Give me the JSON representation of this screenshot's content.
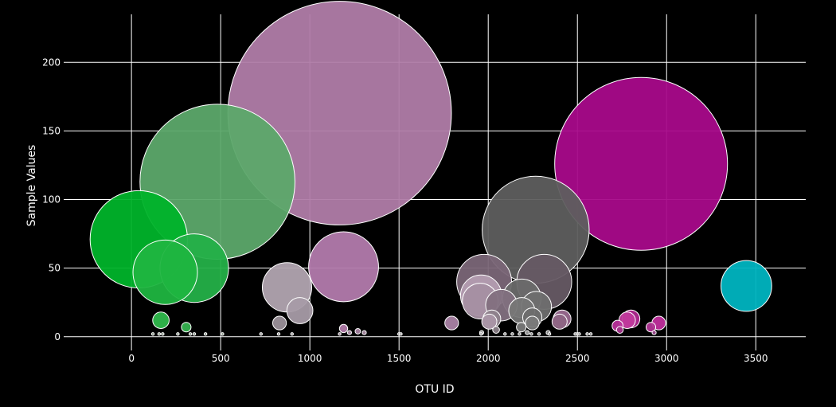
{
  "chart_data": {
    "type": "scatter",
    "style": "bubble",
    "title": "",
    "xlabel": "OTU ID",
    "ylabel": "Sample Values",
    "xlim": [
      -380,
      3780
    ],
    "ylim": [
      -10,
      235
    ],
    "xticks": [
      0,
      500,
      1000,
      1500,
      2000,
      2500,
      3000,
      3500
    ],
    "yticks": [
      0,
      50,
      100,
      150,
      200
    ],
    "grid": true,
    "legend": "none",
    "background": "#000000",
    "size_scale": "diameter proportional to sample value",
    "points": [
      {
        "x": 41,
        "y": 71,
        "color": "#00b32a"
      },
      {
        "x": 189,
        "y": 47,
        "color": "#1fb540"
      },
      {
        "x": 352,
        "y": 50,
        "color": "#24b048"
      },
      {
        "x": 482,
        "y": 113,
        "color": "#5ca86a"
      },
      {
        "x": 165,
        "y": 12,
        "color": "#2fb84c"
      },
      {
        "x": 307,
        "y": 7,
        "color": "#35b14f"
      },
      {
        "x": 1167,
        "y": 163,
        "color": "#b07ca8"
      },
      {
        "x": 1189,
        "y": 51,
        "color": "#b27aac"
      },
      {
        "x": 872,
        "y": 36,
        "color": "#b1a4b0"
      },
      {
        "x": 944,
        "y": 19,
        "color": "#a79ba6"
      },
      {
        "x": 830,
        "y": 10,
        "color": "#9a9099"
      },
      {
        "x": 1189,
        "y": 6,
        "color": "#b07aa8"
      },
      {
        "x": 1269,
        "y": 4,
        "color": "#a884a2"
      },
      {
        "x": 1795,
        "y": 10,
        "color": "#a982a4"
      },
      {
        "x": 1977,
        "y": 40,
        "color": "#7a6677"
      },
      {
        "x": 1960,
        "y": 30,
        "color": "#b39cb0"
      },
      {
        "x": 1955,
        "y": 26,
        "color": "#a58fa2"
      },
      {
        "x": 2074,
        "y": 23,
        "color": "#82707f"
      },
      {
        "x": 2020,
        "y": 13,
        "color": "#8f838d"
      },
      {
        "x": 2006,
        "y": 11,
        "color": "#aa96a6"
      },
      {
        "x": 2044,
        "y": 5,
        "color": "#8a7f88"
      },
      {
        "x": 2266,
        "y": 78,
        "color": "#5e5e5e"
      },
      {
        "x": 2314,
        "y": 40,
        "color": "#665a64"
      },
      {
        "x": 2188,
        "y": 28,
        "color": "#6a6a6a"
      },
      {
        "x": 2188,
        "y": 19,
        "color": "#767676"
      },
      {
        "x": 2270,
        "y": 22,
        "color": "#6e6e6e"
      },
      {
        "x": 2247,
        "y": 14,
        "color": "#6d6d6d"
      },
      {
        "x": 2247,
        "y": 10,
        "color": "#7a7a7a"
      },
      {
        "x": 2185,
        "y": 7,
        "color": "#7a7a7a"
      },
      {
        "x": 2414,
        "y": 13,
        "color": "#9a6a90"
      },
      {
        "x": 2400,
        "y": 11,
        "color": "#8e6584"
      },
      {
        "x": 2857,
        "y": 126,
        "color": "#a80a8a"
      },
      {
        "x": 3447,
        "y": 37,
        "color": "#00b4c0"
      },
      {
        "x": 2800,
        "y": 13,
        "color": "#b0268f"
      },
      {
        "x": 2779,
        "y": 12,
        "color": "#c03a9c"
      },
      {
        "x": 2956,
        "y": 10,
        "color": "#c02e9c"
      },
      {
        "x": 2725,
        "y": 8,
        "color": "#b8309a"
      },
      {
        "x": 2912,
        "y": 7,
        "color": "#b03494"
      },
      {
        "x": 2738,
        "y": 5,
        "color": "#a03288"
      },
      {
        "x": 2930,
        "y": 3,
        "color": "#9a4a8e"
      },
      {
        "x": 2336,
        "y": 3,
        "color": "#8a8a8a"
      },
      {
        "x": 1963,
        "y": 3,
        "color": "#9a9a9a"
      },
      {
        "x": 1305,
        "y": 3,
        "color": "#a88aa2"
      },
      {
        "x": 1222,
        "y": 3,
        "color": "#a88aa2"
      },
      {
        "x": 2219,
        "y": 3,
        "color": "#9a9a9a"
      },
      {
        "x": 2135,
        "y": 2,
        "color": "#8a8a8a"
      },
      {
        "x": 2343,
        "y": 2,
        "color": "#8a8a8a"
      },
      {
        "x": 2285,
        "y": 2,
        "color": "#8a8a8a"
      },
      {
        "x": 2094,
        "y": 2,
        "color": "#8a8a8a"
      },
      {
        "x": 1960,
        "y": 2,
        "color": "#9a9a9a"
      },
      {
        "x": 2242,
        "y": 2,
        "color": "#8a8a8a"
      },
      {
        "x": 2175,
        "y": 2,
        "color": "#8a8a8a"
      },
      {
        "x": 2488,
        "y": 2,
        "color": "#8a8a8a"
      },
      {
        "x": 2500,
        "y": 2,
        "color": "#8a8a8a"
      },
      {
        "x": 2510,
        "y": 2,
        "color": "#8a8a8a"
      },
      {
        "x": 2555,
        "y": 2,
        "color": "#8a8a8a"
      },
      {
        "x": 2575,
        "y": 2,
        "color": "#8a8a8a"
      },
      {
        "x": 1500,
        "y": 2,
        "color": "#9a9a9a"
      },
      {
        "x": 1510,
        "y": 2,
        "color": "#9a9a9a"
      },
      {
        "x": 1167,
        "y": 2,
        "color": "#a08a9c"
      },
      {
        "x": 900,
        "y": 2,
        "color": "#9a9a9a"
      },
      {
        "x": 825,
        "y": 2,
        "color": "#9a9a9a"
      },
      {
        "x": 726,
        "y": 2,
        "color": "#9a9a9a"
      },
      {
        "x": 510,
        "y": 2,
        "color": "#8a9a8a"
      },
      {
        "x": 415,
        "y": 2,
        "color": "#8a9a8a"
      },
      {
        "x": 352,
        "y": 2,
        "color": "#8a9a8a"
      },
      {
        "x": 330,
        "y": 2,
        "color": "#8a9a8a"
      },
      {
        "x": 260,
        "y": 2,
        "color": "#8a9a8a"
      },
      {
        "x": 175,
        "y": 2,
        "color": "#8a9a8a"
      },
      {
        "x": 155,
        "y": 2,
        "color": "#8a9a8a"
      },
      {
        "x": 120,
        "y": 2,
        "color": "#8a9a8a"
      }
    ]
  }
}
